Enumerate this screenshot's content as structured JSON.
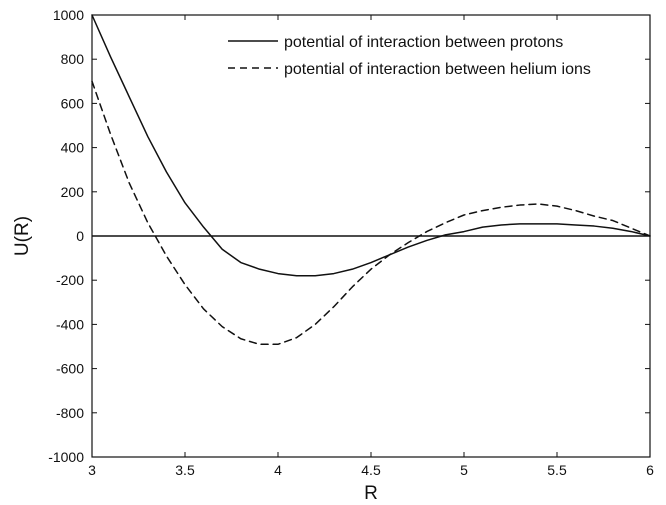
{
  "chart_data": {
    "type": "line",
    "title": "",
    "xlabel": "R",
    "ylabel": "U(R)",
    "xlim": [
      3,
      6
    ],
    "ylim": [
      -1000,
      1000
    ],
    "xticks": [
      3,
      3.5,
      4,
      4.5,
      5,
      5.5,
      6
    ],
    "yticks": [
      1000,
      800,
      600,
      400,
      200,
      0,
      -200,
      -400,
      -600,
      -800,
      -1000
    ],
    "xtick_labels": [
      "3",
      "3.5",
      "4",
      "4.5",
      "5",
      "5.5",
      "6"
    ],
    "ytick_labels": [
      "1000",
      "800",
      "600",
      "400",
      "200",
      "0",
      "-200",
      "-400",
      "-600",
      "-800",
      "-1000"
    ],
    "grid": false,
    "legend_position": "top-right",
    "zero_line": true,
    "series": [
      {
        "name": "potential of interaction between protons",
        "style": "solid",
        "color": "#111111",
        "x": [
          3.0,
          3.1,
          3.2,
          3.3,
          3.4,
          3.5,
          3.6,
          3.7,
          3.8,
          3.9,
          4.0,
          4.1,
          4.2,
          4.3,
          4.4,
          4.5,
          4.6,
          4.7,
          4.8,
          4.9,
          5.0,
          5.1,
          5.2,
          5.3,
          5.4,
          5.5,
          5.6,
          5.7,
          5.8,
          5.9,
          6.0
        ],
        "y": [
          1000,
          810,
          630,
          450,
          290,
          150,
          40,
          -60,
          -120,
          -150,
          -170,
          -180,
          -180,
          -170,
          -150,
          -120,
          -85,
          -50,
          -20,
          5,
          20,
          40,
          50,
          55,
          55,
          55,
          50,
          45,
          35,
          20,
          0
        ]
      },
      {
        "name": "potential of interaction between helium ions",
        "style": "dashed",
        "color": "#111111",
        "x": [
          3.0,
          3.1,
          3.2,
          3.3,
          3.4,
          3.5,
          3.6,
          3.7,
          3.8,
          3.9,
          4.0,
          4.1,
          4.2,
          4.3,
          4.4,
          4.5,
          4.6,
          4.7,
          4.8,
          4.9,
          5.0,
          5.1,
          5.2,
          5.3,
          5.4,
          5.5,
          5.6,
          5.7,
          5.8,
          5.9,
          6.0
        ],
        "y": [
          700,
          460,
          240,
          60,
          -90,
          -220,
          -330,
          -410,
          -465,
          -490,
          -490,
          -460,
          -400,
          -320,
          -230,
          -150,
          -85,
          -30,
          20,
          60,
          95,
          115,
          130,
          140,
          145,
          135,
          115,
          90,
          70,
          35,
          0
        ]
      }
    ]
  }
}
